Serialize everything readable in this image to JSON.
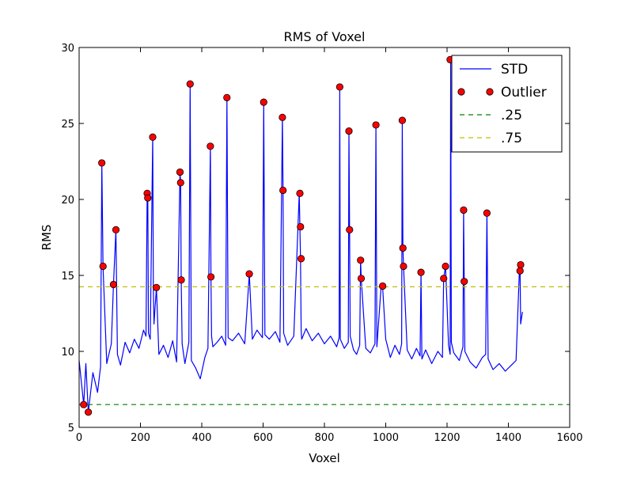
{
  "chart_data": {
    "type": "line",
    "title": "RMS of Voxel",
    "xlabel": "Voxel",
    "ylabel": "RMS",
    "xlim": [
      0,
      1600
    ],
    "ylim": [
      5,
      30
    ],
    "xticks": [
      0,
      200,
      400,
      600,
      800,
      1000,
      1200,
      1400,
      1600
    ],
    "yticks": [
      5,
      10,
      15,
      20,
      25,
      30
    ],
    "grid": false,
    "legend_position": "top-right",
    "series": [
      {
        "name": "STD",
        "kind": "line",
        "color": "#0000ff",
        "x": [
          0,
          15,
          22,
          30,
          45,
          60,
          70,
          74,
          78,
          90,
          105,
          112,
          120,
          125,
          135,
          150,
          165,
          180,
          195,
          210,
          218,
          222,
          224,
          226,
          232,
          240,
          242,
          244,
          252,
          260,
          275,
          290,
          305,
          318,
          329,
          331,
          333,
          336,
          345,
          358,
          362,
          366,
          380,
          395,
          410,
          420,
          428,
          430,
          432,
          436,
          450,
          465,
          478,
          482,
          486,
          500,
          520,
          540,
          555,
          565,
          580,
          598,
          602,
          606,
          620,
          640,
          655,
          663,
          665,
          667,
          680,
          700,
          718,
          720,
          722,
          724,
          726,
          740,
          760,
          780,
          800,
          820,
          840,
          848,
          850,
          852,
          865,
          878,
          880,
          882,
          884,
          895,
          905,
          915,
          918,
          920,
          935,
          950,
          965,
          968,
          971,
          985,
          990,
          1000,
          1015,
          1030,
          1045,
          1052,
          1054,
          1056,
          1058,
          1070,
          1085,
          1100,
          1112,
          1115,
          1118,
          1130,
          1150,
          1170,
          1185,
          1189,
          1195,
          1205,
          1210,
          1212,
          1214,
          1222,
          1240,
          1252,
          1254,
          1256,
          1258,
          1275,
          1295,
          1315,
          1326,
          1330,
          1334,
          1350,
          1370,
          1390,
          1410,
          1425,
          1436,
          1438,
          1440,
          1446
        ],
        "y": [
          9.4,
          6.5,
          9.2,
          6.0,
          8.6,
          7.3,
          9.0,
          22.4,
          15.6,
          9.2,
          10.5,
          14.4,
          18.0,
          9.8,
          9.1,
          10.6,
          9.9,
          10.8,
          10.2,
          11.4,
          11.0,
          20.4,
          20.1,
          11.2,
          10.8,
          24.1,
          14.2,
          11.8,
          14.2,
          9.8,
          10.4,
          9.6,
          10.7,
          9.3,
          21.8,
          21.1,
          14.7,
          10.5,
          9.2,
          10.6,
          27.6,
          9.4,
          8.9,
          8.2,
          9.6,
          10.2,
          23.5,
          14.9,
          11.0,
          10.3,
          10.6,
          11.0,
          10.4,
          26.7,
          10.9,
          10.7,
          11.2,
          10.5,
          15.1,
          10.8,
          11.4,
          10.9,
          26.4,
          11.1,
          10.8,
          11.3,
          10.6,
          25.4,
          20.6,
          11.2,
          10.4,
          11.0,
          20.4,
          18.2,
          16.1,
          11.4,
          10.8,
          11.5,
          10.7,
          11.2,
          10.5,
          11.0,
          10.3,
          10.9,
          27.4,
          10.8,
          10.2,
          10.6,
          24.5,
          18.0,
          11.0,
          10.1,
          9.8,
          10.4,
          16.0,
          14.8,
          10.2,
          9.9,
          10.5,
          24.9,
          10.3,
          14.3,
          14.2,
          10.8,
          9.6,
          10.4,
          9.8,
          10.5,
          25.2,
          16.8,
          15.6,
          10.1,
          9.5,
          10.2,
          9.7,
          15.2,
          9.5,
          10.1,
          9.2,
          10.0,
          9.6,
          14.8,
          15.6,
          10.4,
          9.8,
          29.2,
          10.6,
          9.9,
          9.4,
          10.3,
          19.3,
          14.6,
          10.0,
          9.3,
          8.9,
          9.6,
          9.8,
          19.1,
          9.5,
          8.8,
          9.2,
          8.7,
          9.1,
          9.4,
          15.3,
          15.7,
          11.8,
          12.6
        ]
      },
      {
        "name": "Outlier",
        "kind": "points",
        "color": "#ff0000",
        "x": [
          15,
          30,
          74,
          78,
          112,
          120,
          222,
          224,
          240,
          252,
          329,
          331,
          333,
          362,
          428,
          430,
          482,
          555,
          602,
          663,
          665,
          720,
          722,
          724,
          850,
          880,
          882,
          918,
          920,
          968,
          990,
          1054,
          1056,
          1058,
          1115,
          1189,
          1195,
          1210,
          1254,
          1256,
          1330,
          1438,
          1440
        ],
        "y": [
          6.5,
          6.0,
          22.4,
          15.6,
          14.4,
          18.0,
          20.4,
          20.1,
          24.1,
          14.2,
          21.8,
          21.1,
          14.7,
          27.6,
          23.5,
          14.9,
          26.7,
          15.1,
          26.4,
          25.4,
          20.6,
          20.4,
          18.2,
          16.1,
          27.4,
          24.5,
          18.0,
          16.0,
          14.8,
          24.9,
          14.3,
          25.2,
          16.8,
          15.6,
          15.2,
          14.8,
          15.6,
          29.2,
          19.3,
          14.6,
          19.1,
          15.3,
          15.7
        ]
      },
      {
        "name": ".25",
        "kind": "hline",
        "color": "#008000",
        "y": 6.5
      },
      {
        "name": ".75",
        "kind": "hline",
        "color": "#bfbf00",
        "y": 14.25
      }
    ]
  }
}
